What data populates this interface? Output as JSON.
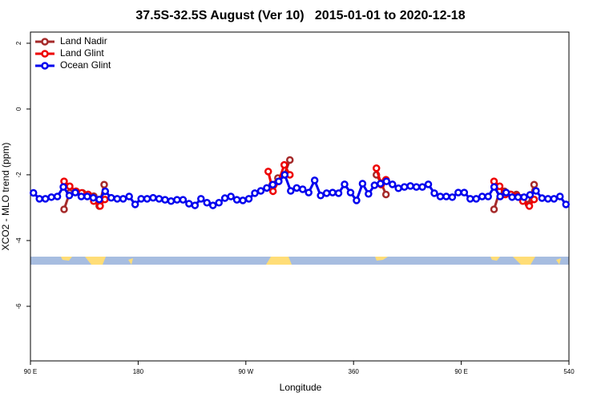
{
  "chart_data": {
    "type": "line",
    "title": "37.5S-32.5S August (Ver 10)   2015-01-01 to 2020-12-18",
    "xlabel": "Longitude",
    "ylabel": "XCO2 - MLO trend (ppm)",
    "xlim": [
      90,
      540
    ],
    "ylim": [
      -7.66,
      2.34
    ],
    "xticks": [
      {
        "value": 90,
        "label": "90 E"
      },
      180,
      {
        "value": 270,
        "label": "90 W"
      },
      360,
      {
        "value": 450,
        "label": "90 E"
      },
      540
    ],
    "yticks": [
      2,
      0,
      -2,
      -4,
      -6
    ],
    "legend": "top-left",
    "series": [
      {
        "name": "Land Nadir",
        "color": "#a52a2a",
        "x": [
          118.1,
          122.8,
          128.1,
          133.5,
          138.2,
          142.9,
          147.5,
          151.6,
          null,
          292.1,
          296.8,
          302.1,
          306.8,
          null,
          379.1,
          383.1,
          387.1,
          null,
          477.4,
          482.1,
          486.1,
          491.5,
          496.1,
          500.8,
          506.2,
          510.9
        ],
        "values": [
          -3.05,
          -2.55,
          -2.5,
          -2.55,
          -2.6,
          -2.65,
          -2.95,
          -2.3,
          null,
          -2.3,
          -2.1,
          -2.0,
          -1.55,
          null,
          -2.0,
          -2.25,
          -2.6,
          null,
          -3.05,
          -2.5,
          -2.5,
          -2.6,
          -2.6,
          -2.7,
          -2.9,
          -2.3
        ]
      },
      {
        "name": "Land Glint",
        "color": "#ee0000",
        "x": [
          118.1,
          122.8,
          128.1,
          132.8,
          138.2,
          142.9,
          148.2,
          152.2,
          null,
          288.7,
          292.7,
          297.4,
          302.1,
          306.8,
          null,
          379.1,
          383.1,
          387.1,
          null,
          477.4,
          482.1,
          486.8,
          491.5,
          496.8,
          501.5,
          506.9,
          510.9
        ],
        "values": [
          -2.2,
          -2.35,
          -2.5,
          -2.55,
          -2.6,
          -2.8,
          -2.95,
          -2.75,
          null,
          -1.9,
          -2.5,
          -2.2,
          -1.7,
          -2.0,
          null,
          -1.8,
          -2.3,
          -2.15,
          null,
          -2.2,
          -2.35,
          -2.6,
          -2.6,
          -2.65,
          -2.8,
          -2.95,
          -2.75
        ]
      },
      {
        "name": "Ocean Glint",
        "color": "#0000ee",
        "x": [
          92.5,
          97.5,
          102.5,
          107.5,
          112.5,
          117.5,
          122.5,
          127.5,
          132.5,
          137.5,
          142.5,
          147.5,
          152.5,
          157.5,
          162.5,
          167.5,
          172.5,
          177.5,
          182.5,
          187.5,
          192.5,
          197.5,
          202.5,
          207.5,
          212.5,
          217.5,
          222.5,
          227.5,
          232.5,
          237.5,
          242.5,
          247.5,
          252.5,
          257.5,
          262.5,
          267.5,
          272.5,
          277.5,
          282.5,
          287.5,
          292.5,
          297.5,
          302.5,
          307.5,
          312.5,
          317.5,
          322.5,
          327.5,
          332.5,
          337.5,
          342.5,
          347.5,
          352.5,
          357.5,
          362.5,
          367.5,
          372.5,
          377.5,
          382.5,
          387.5,
          392.5,
          397.5,
          402.5,
          407.5,
          412.5,
          417.5,
          422.5,
          427.5,
          432.5,
          437.5,
          442.5,
          447.5,
          452.5,
          457.5,
          462.5,
          467.5,
          472.5,
          477.5,
          482.5,
          487.5,
          492.5,
          497.5,
          502.5,
          507.5,
          512.5,
          517.5,
          522.5,
          527.5,
          532.5,
          537.5
        ],
        "values": [
          -2.55,
          -2.73,
          -2.73,
          -2.68,
          -2.66,
          -2.37,
          -2.63,
          -2.54,
          -2.66,
          -2.66,
          -2.7,
          -2.75,
          -2.5,
          -2.7,
          -2.73,
          -2.73,
          -2.66,
          -2.9,
          -2.73,
          -2.73,
          -2.7,
          -2.73,
          -2.76,
          -2.8,
          -2.76,
          -2.76,
          -2.88,
          -2.93,
          -2.73,
          -2.85,
          -2.93,
          -2.85,
          -2.71,
          -2.66,
          -2.76,
          -2.78,
          -2.73,
          -2.56,
          -2.49,
          -2.4,
          -2.3,
          -2.2,
          -2.0,
          -2.49,
          -2.4,
          -2.44,
          -2.54,
          -2.17,
          -2.63,
          -2.56,
          -2.54,
          -2.56,
          -2.29,
          -2.54,
          -2.78,
          -2.27,
          -2.58,
          -2.32,
          -2.27,
          -2.2,
          -2.29,
          -2.41,
          -2.37,
          -2.34,
          -2.37,
          -2.37,
          -2.29,
          -2.56,
          -2.66,
          -2.66,
          -2.68,
          -2.54,
          -2.54,
          -2.73,
          -2.73,
          -2.66,
          -2.66,
          -2.37,
          -2.66,
          -2.54,
          -2.68,
          -2.68,
          -2.68,
          -2.61,
          -2.49,
          -2.71,
          -2.73,
          -2.73,
          -2.66,
          -2.9
        ]
      }
    ]
  }
}
